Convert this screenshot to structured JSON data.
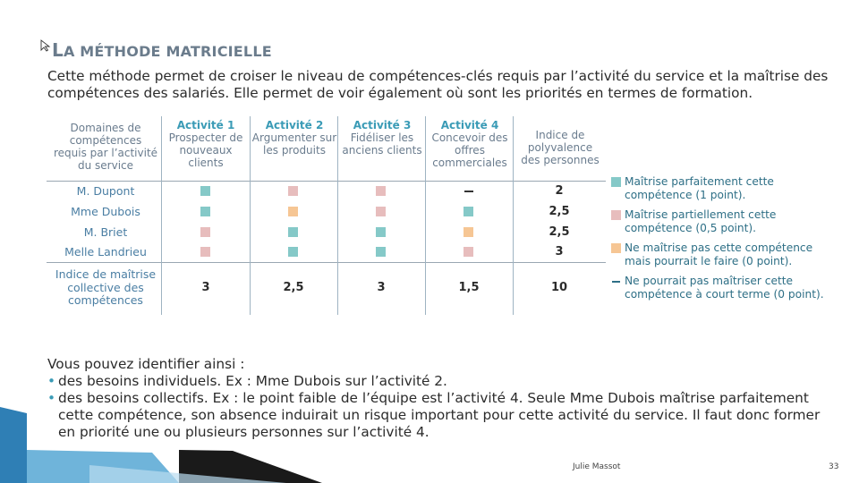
{
  "title": {
    "first_letter": "L",
    "rest_small": "A MÉTHODE MATRICIELLE"
  },
  "intro": "Cette méthode permet de croiser le niveau de compétences-clés requis par l’activité du service et la maîtrise des compétences des salariés. Elle permet de voir également où sont les priorités en termes de formation.",
  "table": {
    "corner": "Domaines de compétences requis par l’activité du service",
    "columns": [
      {
        "name": "Activité 1",
        "desc": "Prospecter de nouveaux clients"
      },
      {
        "name": "Activité 2",
        "desc": "Argumenter sur les produits"
      },
      {
        "name": "Activité 3",
        "desc": "Fidéliser les anciens clients"
      },
      {
        "name": "Activité 4",
        "desc": "Concevoir des offres commerciales"
      }
    ],
    "index_header": "Indice de polyvalence des personnes",
    "rows": [
      {
        "name": "M. Dupont",
        "cells": [
          "teal",
          "pink",
          "pink",
          "dash"
        ],
        "index": "2"
      },
      {
        "name": "Mme Dubois",
        "cells": [
          "teal",
          "orange",
          "pink",
          "teal"
        ],
        "index": "2,5"
      },
      {
        "name": "M. Briet",
        "cells": [
          "pink",
          "teal",
          "teal",
          "orange"
        ],
        "index": "2,5"
      },
      {
        "name": "Melle Landrieu",
        "cells": [
          "pink",
          "teal",
          "teal",
          "pink"
        ],
        "index": "3"
      }
    ],
    "collective_label": "Indice de maîtrise collective des compétences",
    "collective_values": [
      "3",
      "2,5",
      "3",
      "1,5",
      "10"
    ]
  },
  "legend": [
    {
      "type": "teal",
      "text": "Maîtrise parfaitement cette compétence (1 point)."
    },
    {
      "type": "pink",
      "text": "Maîtrise partiellement cette compétence (0,5 point)."
    },
    {
      "type": "orange",
      "text": "Ne maîtrise pas cette compétence mais pourrait le faire (0 point)."
    },
    {
      "type": "dash",
      "text": "Ne pourrait pas maîtriser cette compétence à court terme (0 point)."
    }
  ],
  "bottom": {
    "lead": "Vous pouvez identifier ainsi :",
    "bullet1": "des besoins individuels. Ex : Mme Dubois sur l’activité 2.",
    "bullet2": "des besoins collectifs. Ex : le point faible de l’équipe est l’activité 4. Seule Mme Dubois maîtrise parfaitement cette compétence, son absence induirait un risque important pour cette activité du service. Il faut donc former en priorité une ou plusieurs personnes sur l’activité 4."
  },
  "footer": {
    "author": "Julie Massot",
    "page": "33"
  },
  "colors": {
    "teal": "#85c9c8",
    "pink": "#e7bdbd",
    "orange": "#f6c694",
    "accent": "#3a9bb6"
  }
}
